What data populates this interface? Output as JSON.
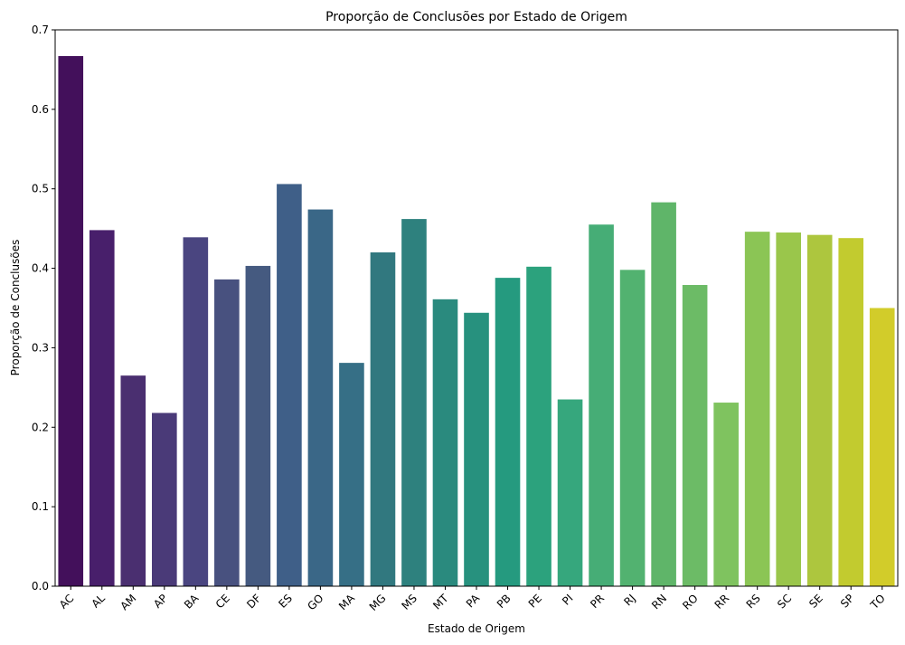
{
  "chart_data": {
    "type": "bar",
    "title": "Proporção de Conclusões por Estado de Origem",
    "xlabel": "Estado de Origem",
    "ylabel": "Proporção de Conclusões",
    "ylim": [
      0,
      0.7
    ],
    "yticks": [
      "0.0",
      "0.1",
      "0.2",
      "0.3",
      "0.4",
      "0.5",
      "0.6",
      "0.7"
    ],
    "grid": false,
    "palette": "viridis",
    "categories": [
      "AC",
      "AL",
      "AM",
      "AP",
      "BA",
      "CE",
      "DF",
      "ES",
      "GO",
      "MA",
      "MG",
      "MS",
      "MT",
      "PA",
      "PB",
      "PE",
      "PI",
      "PR",
      "RJ",
      "RN",
      "RO",
      "RR",
      "RS",
      "SC",
      "SE",
      "SP",
      "TO"
    ],
    "values": [
      0.667,
      0.448,
      0.265,
      0.218,
      0.439,
      0.386,
      0.403,
      0.506,
      0.474,
      0.281,
      0.42,
      0.462,
      0.361,
      0.344,
      0.388,
      0.402,
      0.235,
      0.455,
      0.398,
      0.483,
      0.379,
      0.231,
      0.446,
      0.445,
      0.442,
      0.438,
      0.35
    ],
    "colors": [
      "#43105b",
      "#481f6b",
      "#4a2f70",
      "#4a3a78",
      "#4a4580",
      "#48517f",
      "#455a80",
      "#3f5f88",
      "#3a6787",
      "#366f86",
      "#31787f",
      "#2e817e",
      "#2a8a7e",
      "#27917e",
      "#259a7f",
      "#2ca27d",
      "#36a77d",
      "#46ad76",
      "#52b270",
      "#5fb569",
      "#6cbb66",
      "#7fc35f",
      "#8bc555",
      "#9ac64b",
      "#adc63e",
      "#c2cb2f",
      "#d2cc2a"
    ]
  }
}
